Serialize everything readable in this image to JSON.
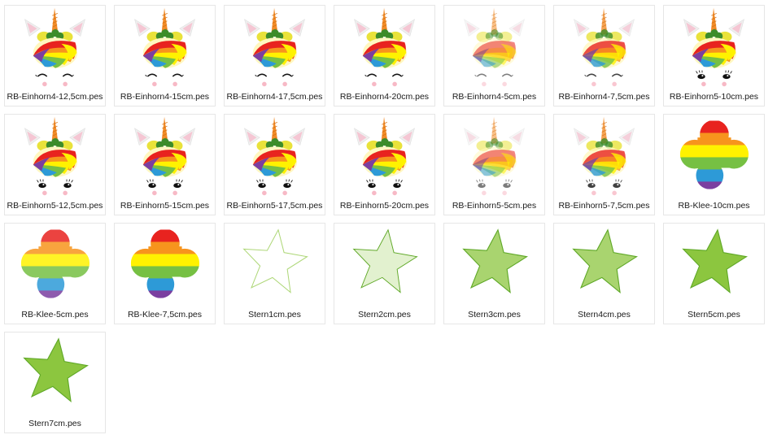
{
  "files": [
    {
      "name": "RB-Einhorn4-12,5cm.pes",
      "kind": "unicorn4",
      "detail": "full"
    },
    {
      "name": "RB-Einhorn4-15cm.pes",
      "kind": "unicorn4",
      "detail": "full"
    },
    {
      "name": "RB-Einhorn4-17,5cm.pes",
      "kind": "unicorn4",
      "detail": "full"
    },
    {
      "name": "RB-Einhorn4-20cm.pes",
      "kind": "unicorn4",
      "detail": "full"
    },
    {
      "name": "RB-Einhorn4-5cm.pes",
      "kind": "unicorn4",
      "detail": "sketch"
    },
    {
      "name": "RB-Einhorn4-7,5cm.pes",
      "kind": "unicorn4",
      "detail": "light"
    },
    {
      "name": "RB-Einhorn5-10cm.pes",
      "kind": "unicorn5",
      "detail": "full"
    },
    {
      "name": "RB-Einhorn5-12,5cm.pes",
      "kind": "unicorn5",
      "detail": "full"
    },
    {
      "name": "RB-Einhorn5-15cm.pes",
      "kind": "unicorn5",
      "detail": "full"
    },
    {
      "name": "RB-Einhorn5-17,5cm.pes",
      "kind": "unicorn5",
      "detail": "full"
    },
    {
      "name": "RB-Einhorn5-20cm.pes",
      "kind": "unicorn5",
      "detail": "full"
    },
    {
      "name": "RB-Einhorn5-5cm.pes",
      "kind": "unicorn5",
      "detail": "sketch"
    },
    {
      "name": "RB-Einhorn5-7,5cm.pes",
      "kind": "unicorn5",
      "detail": "light"
    },
    {
      "name": "RB-Klee-10cm.pes",
      "kind": "clover",
      "detail": "full"
    },
    {
      "name": "RB-Klee-5cm.pes",
      "kind": "clover",
      "detail": "sketch"
    },
    {
      "name": "RB-Klee-7,5cm.pes",
      "kind": "clover",
      "detail": "full"
    },
    {
      "name": "Stern1cm.pes",
      "kind": "star",
      "detail": "outline"
    },
    {
      "name": "Stern2cm.pes",
      "kind": "star",
      "detail": "light"
    },
    {
      "name": "Stern3cm.pes",
      "kind": "star",
      "detail": "medium"
    },
    {
      "name": "Stern4cm.pes",
      "kind": "star",
      "detail": "medium"
    },
    {
      "name": "Stern5cm.pes",
      "kind": "star",
      "detail": "full"
    },
    {
      "name": "Stern7cm.pes",
      "kind": "star",
      "detail": "full"
    }
  ],
  "colors": {
    "horn": "#f28c28",
    "ear_outer": "#efefef",
    "ear_inner": "#f5c6d3",
    "clover_leaf": "#3c8c2a",
    "flower_yellow": "#e9e23a",
    "rainbow": [
      "#e8231f",
      "#f7941d",
      "#fff200",
      "#76c043",
      "#2d9ad7",
      "#7b3fa0"
    ],
    "cheek": "#f7b9c6",
    "eye": "#111111",
    "star_fill": "#8cc63f",
    "star_line": "#5fa827"
  }
}
